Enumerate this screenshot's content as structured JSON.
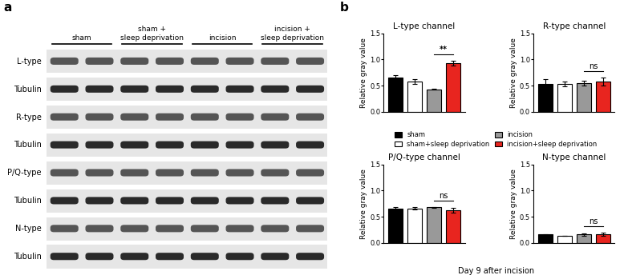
{
  "panels": {
    "a": "a",
    "b": "b"
  },
  "blot": {
    "groups": [
      "sham",
      "sham +\nsleep deprivation",
      "incision",
      "incision +\nsleep deprivation"
    ],
    "rows": [
      "L-type",
      "Tubulin",
      "R-type",
      "Tubulin",
      "P/Q-type",
      "Tubulin",
      "N-type",
      "Tubulin"
    ]
  },
  "caption": "Day 9 after incision",
  "chart_data": [
    {
      "type": "bar",
      "title": "L-type channel",
      "ylabel": "Relative gray value",
      "categories": [
        "sham",
        "sham+sleep deprivation",
        "incision",
        "incision+sleep deprivation"
      ],
      "values": [
        0.65,
        0.58,
        0.43,
        0.93
      ],
      "errors": [
        0.05,
        0.05,
        0.01,
        0.05
      ],
      "colors": [
        "#000000",
        "#ffffff",
        "#999999",
        "#e8251f"
      ],
      "ylim": [
        0,
        1.5
      ],
      "yticks": [
        {
          "value": 0,
          "label": "0.0"
        },
        {
          "value": 0.5,
          "label": "0.5"
        },
        {
          "value": 1.0,
          "label": "1.0"
        },
        {
          "value": 1.5,
          "label": "1.5"
        }
      ],
      "tick_labels": "y",
      "legend": "center",
      "significance": {
        "label": "**",
        "pair": [
          "incision",
          "incision+sleep deprivation"
        ]
      }
    },
    {
      "type": "bar",
      "title": "R-type channel",
      "ylabel": "Relative gray value",
      "categories": [
        "sham",
        "sham+sleep deprivation",
        "incision",
        "incision+sleep deprivation"
      ],
      "values": [
        0.53,
        0.53,
        0.55,
        0.58
      ],
      "errors": [
        0.1,
        0.04,
        0.05,
        0.08
      ],
      "colors": [
        "#000000",
        "#ffffff",
        "#999999",
        "#e8251f"
      ],
      "ylim": [
        0,
        1.5
      ],
      "yticks": [
        {
          "value": 0,
          "label": "0.0"
        },
        {
          "value": 0.5,
          "label": "0.5"
        },
        {
          "value": 1.0,
          "label": "1.0"
        },
        {
          "value": 1.5,
          "label": "1.5"
        }
      ],
      "tick_labels": "y",
      "significance": {
        "label": "ns",
        "pair": [
          "incision",
          "incision+sleep deprivation"
        ]
      }
    },
    {
      "type": "bar",
      "title": "P/Q-type channel",
      "ylabel": "Relative gray value",
      "categories": [
        "sham",
        "sham+sleep deprivation",
        "incision",
        "incision+sleep deprivation"
      ],
      "values": [
        0.65,
        0.66,
        0.68,
        0.62
      ],
      "errors": [
        0.03,
        0.02,
        0.01,
        0.05
      ],
      "colors": [
        "#000000",
        "#ffffff",
        "#999999",
        "#e8251f"
      ],
      "ylim": [
        0,
        1.5
      ],
      "yticks": [
        {
          "value": 0,
          "label": "0.0"
        },
        {
          "value": 0.5,
          "label": "0.5"
        },
        {
          "value": 1.0,
          "label": "1.0"
        },
        {
          "value": 1.5,
          "label": "1.5"
        }
      ],
      "tick_labels": "y",
      "significance": {
        "label": "ns",
        "pair": [
          "incision",
          "incision+sleep deprivation"
        ]
      }
    },
    {
      "type": "bar",
      "title": "N-type channel",
      "ylabel": "Relative gray value",
      "categories": [
        "sham",
        "sham+sleep deprivation",
        "incision",
        "incision+sleep deprivation"
      ],
      "values": [
        0.16,
        0.14,
        0.16,
        0.16
      ],
      "errors": [
        0.01,
        0.0,
        0.02,
        0.03
      ],
      "colors": [
        "#000000",
        "#ffffff",
        "#999999",
        "#e8251f"
      ],
      "ylim": [
        0,
        1.5
      ],
      "yticks": [
        {
          "value": 0,
          "label": "0.0"
        },
        {
          "value": 0.5,
          "label": "0.5"
        },
        {
          "value": 1.0,
          "label": "1.0"
        },
        {
          "value": 1.5,
          "label": "1.5"
        }
      ],
      "tick_labels": "y",
      "significance": {
        "label": "ns",
        "pair": [
          "incision",
          "incision+sleep deprivation"
        ]
      }
    }
  ]
}
